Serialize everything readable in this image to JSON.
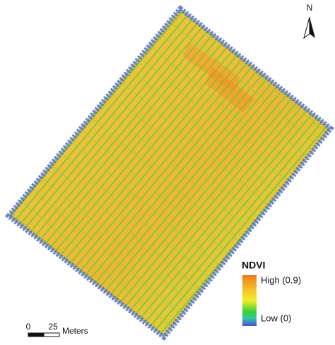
{
  "north_arrow": {
    "label": "N"
  },
  "legend": {
    "title": "NDVI",
    "high": "High (0.9)",
    "low": "Low (0)"
  },
  "scale_bar": {
    "labels": [
      "0",
      "25"
    ],
    "unit": "Meters"
  }
}
